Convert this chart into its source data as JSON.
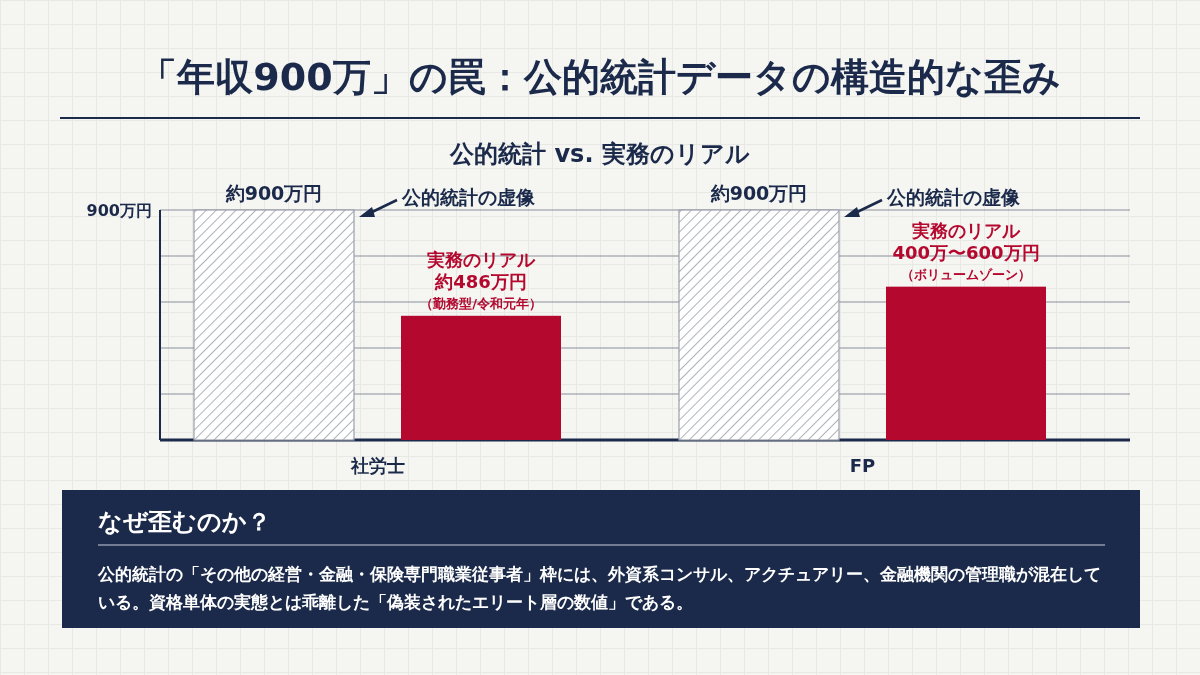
{
  "chart_data": {
    "type": "bar",
    "title": "「年収900万」の罠：公的統計データの構造的な歪み",
    "subtitle": "公的統計 vs. 実務のリアル",
    "categories": [
      "社労士",
      "FP"
    ],
    "series": [
      {
        "name": "公的統計の虚像",
        "color": "#9a9ea8",
        "values": [
          900,
          900
        ],
        "value_labels": [
          "約900万円",
          "約900万円"
        ]
      },
      {
        "name": "実務のリアル",
        "color": "#b5082e",
        "values": [
          486,
          600
        ],
        "value_labels": [
          "約486万円",
          "400万〜600万円"
        ]
      }
    ],
    "ylim": [
      0,
      900
    ],
    "yticks": [
      {
        "value": 0,
        "label": null
      },
      {
        "value": 180,
        "label": null
      },
      {
        "value": 360,
        "label": null
      },
      {
        "value": 540,
        "label": null
      },
      {
        "value": 720,
        "label": null
      },
      {
        "value": 900,
        "label": "900万円"
      }
    ],
    "grid": "y",
    "annotations": [
      "（勤務型/令和元年）",
      "（ボリュームゾーン）",
      "なぜ歪むのか？",
      "公的統計の「その他の経営・金融・保険専門職業従事者」枠には、外資系コンサル、アクチュアリー、金融機関の管理職が混在している。資格単体の実態とは乖離した「偽装されたエリート層の数値」である。"
    ]
  }
}
